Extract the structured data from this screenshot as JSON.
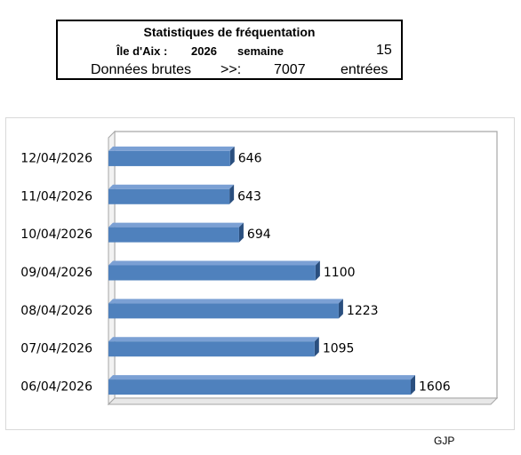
{
  "header": {
    "title": "Statistiques de  fréquentation",
    "island_label": "Île d'Aix :",
    "year": "2026",
    "week_label": "semaine",
    "week_number": "15",
    "raw_data_label": "Données brutes",
    "arrow": ">>:",
    "total": "7007",
    "entries_label": "entrées"
  },
  "chart_data": {
    "type": "bar",
    "orientation": "horizontal",
    "categories": [
      "06/04/2026",
      "07/04/2026",
      "08/04/2026",
      "09/04/2026",
      "10/04/2026",
      "11/04/2026",
      "12/04/2026"
    ],
    "values": [
      1606,
      1095,
      1223,
      1100,
      694,
      643,
      646
    ],
    "data_labels": [
      "1606",
      "1095",
      "1223",
      "1100",
      "694",
      "643",
      "646"
    ],
    "xlim": [
      0,
      1800
    ],
    "grid": false,
    "legend": "none",
    "bar_color": "#4f81bd",
    "bar_side_color": "#2a4f7f"
  },
  "footer": {
    "credit": "GJP"
  }
}
